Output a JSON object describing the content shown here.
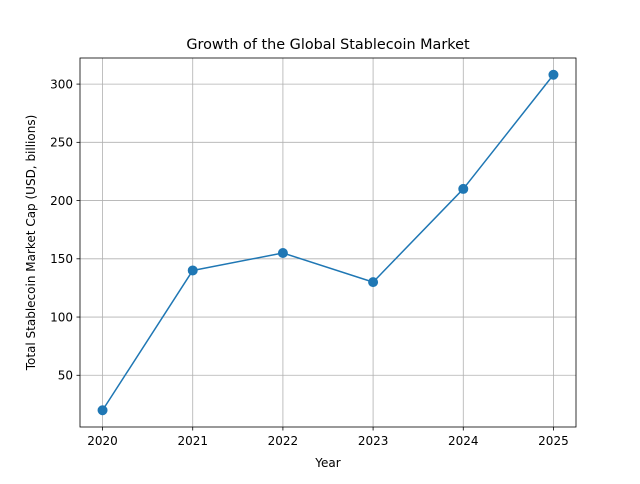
{
  "chart_data": {
    "type": "line",
    "title": "Growth of the Global Stablecoin Market",
    "xlabel": "Year",
    "ylabel": "Total Stablecoin Market Cap (USD, billions)",
    "x": [
      2020,
      2021,
      2022,
      2023,
      2024,
      2025
    ],
    "xticks": [
      "2020",
      "2021",
      "2022",
      "2023",
      "2024",
      "2025"
    ],
    "series": [
      {
        "name": "",
        "values": [
          20,
          140,
          155,
          130,
          210,
          308
        ]
      }
    ],
    "yticks": [
      50,
      100,
      150,
      200,
      250,
      300
    ],
    "xlim": [
      2019.75,
      2025.25
    ],
    "ylim": [
      5.6,
      322.4
    ],
    "grid": true,
    "marker": "circle",
    "color": "#1f77b4"
  }
}
